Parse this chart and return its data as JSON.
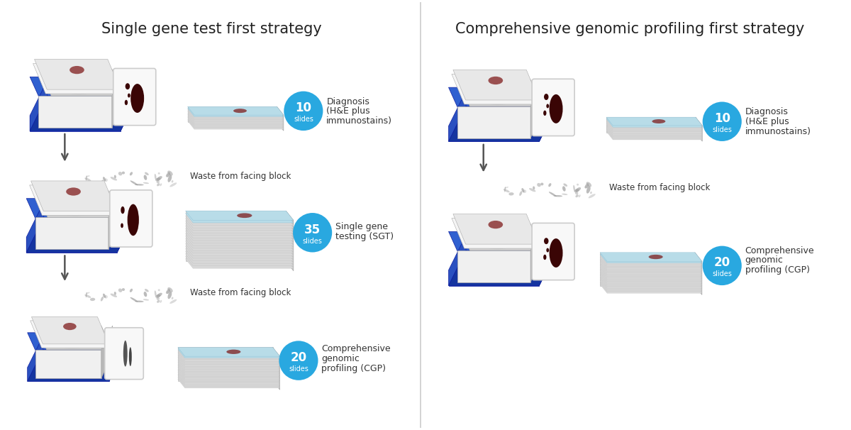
{
  "background_color": "#ffffff",
  "fig_width": 12.0,
  "fig_height": 6.06,
  "left_title": "Single gene test first strategy",
  "right_title": "Comprehensive genomic profiling first strategy",
  "title_fontsize": 15,
  "title_color": "#222222",
  "divider_color": "#cccccc",
  "blue_circle_color": "#29a8e0",
  "blue_circle_text_color": "#ffffff",
  "label_text_color": "#333333",
  "arrow_color": "#555555",
  "waste_text": "Waste from facing block",
  "slide_top_blue": "#b8dce8",
  "slide_edge_blue": "#7ab0c8",
  "slide_side_gray": "#c8c8c8",
  "slide_front_gray": "#e0e0e0",
  "tray_blue_dark": "#1535a0",
  "tray_blue_mid": "#2a50c0",
  "tray_blue_top": "#3060d0",
  "block_white": "#f0f0f0",
  "block_gray": "#d0d0d0",
  "block_dark": "#b8b8b8",
  "tissue_dark": "#3a0505",
  "tissue_red": "#7a1010",
  "card_bg": "#f8f8f8",
  "card_border": "#cccccc",
  "waste_color": "#999999"
}
